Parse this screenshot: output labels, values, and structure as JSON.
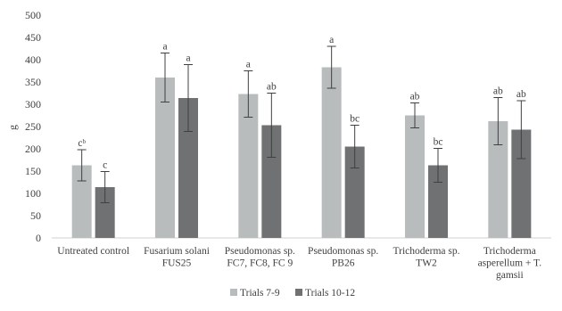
{
  "chart_data": {
    "type": "bar",
    "title": "",
    "xlabel": "",
    "ylabel": "g",
    "ylim": [
      0,
      500
    ],
    "yticks": [
      0,
      50,
      100,
      150,
      200,
      250,
      300,
      350,
      400,
      450,
      500
    ],
    "grid": false,
    "legend_position": "bottom",
    "categories": [
      [
        "Untreated control"
      ],
      [
        "Fusarium solani",
        "FUS25"
      ],
      [
        "Pseudomonas sp.",
        "FC7, FC8, FC 9"
      ],
      [
        "Pseudomonas sp.",
        "PB26"
      ],
      [
        "Trichoderma sp.",
        "TW2"
      ],
      [
        "Trichoderma",
        "asperellum + T.",
        "gamsii"
      ]
    ],
    "series": [
      {
        "name": "Trials 7-9",
        "color": "#b8bcbc",
        "values": [
          163,
          360,
          323,
          383,
          275,
          262
        ],
        "error": [
          35,
          55,
          52,
          47,
          28,
          53
        ],
        "significance": [
          "cᵇ",
          "a",
          "a",
          "a",
          "ab",
          "ab"
        ]
      },
      {
        "name": "Trials 10-12",
        "color": "#6f7172",
        "values": [
          114,
          314,
          253,
          205,
          163,
          243
        ],
        "error": [
          35,
          75,
          72,
          48,
          38,
          65
        ],
        "significance": [
          "c",
          "a",
          "ab",
          "bc",
          "bc",
          "ab"
        ]
      }
    ]
  }
}
